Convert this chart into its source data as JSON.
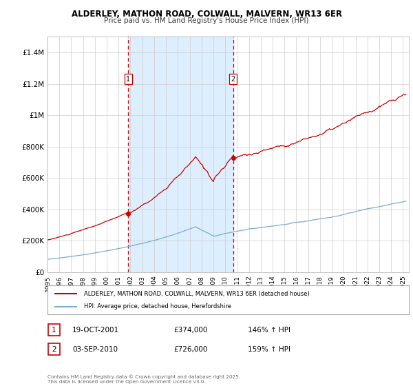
{
  "title": "ALDERLEY, MATHON ROAD, COLWALL, MALVERN, WR13 6ER",
  "subtitle": "Price paid vs. HM Land Registry's House Price Index (HPI)",
  "background_color": "#ffffff",
  "plot_bg_color": "#ffffff",
  "grid_color": "#cccccc",
  "xlim": [
    1995.0,
    2025.5
  ],
  "ylim": [
    0,
    1500000
  ],
  "yticks": [
    0,
    200000,
    400000,
    600000,
    800000,
    1000000,
    1200000,
    1400000
  ],
  "ytick_labels": [
    "£0",
    "£200K",
    "£400K",
    "£600K",
    "£800K",
    "£1M",
    "£1.2M",
    "£1.4M"
  ],
  "xticks": [
    1995,
    1996,
    1997,
    1998,
    1999,
    2000,
    2001,
    2002,
    2003,
    2004,
    2005,
    2006,
    2007,
    2008,
    2009,
    2010,
    2011,
    2012,
    2013,
    2014,
    2015,
    2016,
    2017,
    2018,
    2019,
    2020,
    2021,
    2022,
    2023,
    2024,
    2025
  ],
  "red_line_color": "#cc0000",
  "blue_line_color": "#7aadcc",
  "red_dot_color": "#cc0000",
  "vline_color": "#cc0000",
  "shade_color": "#ddeeff",
  "marker1_x": 2001.8,
  "marker1_y": 374000,
  "marker2_x": 2010.67,
  "marker2_y": 726000,
  "legend_red_label": "ALDERLEY, MATHON ROAD, COLWALL, MALVERN, WR13 6ER (detached house)",
  "legend_blue_label": "HPI: Average price, detached house, Herefordshire",
  "table_row1": [
    "1",
    "19-OCT-2001",
    "£374,000",
    "146% ↑ HPI"
  ],
  "table_row2": [
    "2",
    "03-SEP-2010",
    "£726,000",
    "159% ↑ HPI"
  ],
  "footnote": "Contains HM Land Registry data © Crown copyright and database right 2025.\nThis data is licensed under the Open Government Licence v3.0."
}
